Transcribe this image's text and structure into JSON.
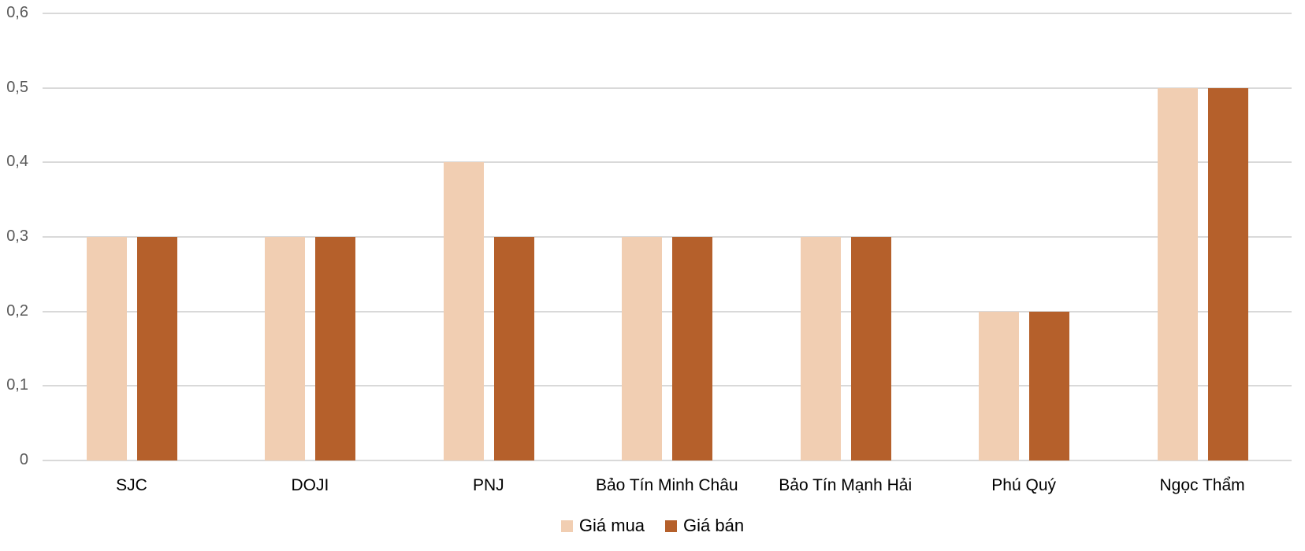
{
  "chart_data": {
    "type": "bar",
    "title": "",
    "xlabel": "",
    "ylabel": "",
    "ylim": [
      0,
      0.6
    ],
    "yticks": [
      "0",
      "0,1",
      "0,2",
      "0,3",
      "0,4",
      "0,5",
      "0,6"
    ],
    "grid": true,
    "legend_position": "bottom",
    "categories": [
      "SJC",
      "DOJI",
      "PNJ",
      "Bảo Tín Minh Châu",
      "Bảo Tín Mạnh Hải",
      "Phú Quý",
      "Ngọc Thẩm"
    ],
    "series": [
      {
        "name": "Giá mua",
        "color": "#F1CEB2",
        "values": [
          0.3,
          0.3,
          0.4,
          0.3,
          0.3,
          0.2,
          0.5
        ]
      },
      {
        "name": "Giá bán",
        "color": "#B5602B",
        "values": [
          0.3,
          0.3,
          0.3,
          0.3,
          0.3,
          0.2,
          0.5
        ]
      }
    ]
  }
}
